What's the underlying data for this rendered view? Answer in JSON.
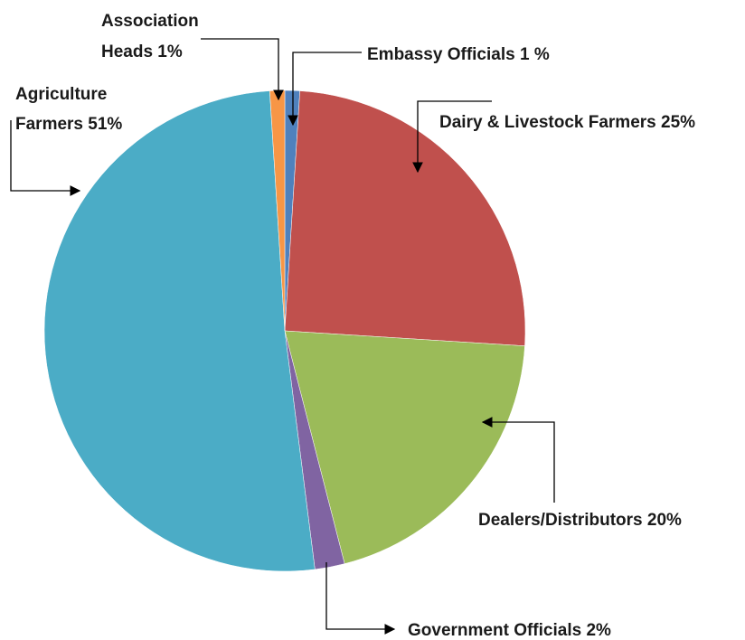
{
  "chart_data": {
    "type": "pie",
    "title": "",
    "slices": [
      {
        "key": "embassy",
        "name": "Embassy Officials",
        "value": 1,
        "color": "#4F81BD"
      },
      {
        "key": "dairy",
        "name": "Dairy & Livestock Farmers",
        "value": 25,
        "color": "#C0504D"
      },
      {
        "key": "dealers",
        "name": "Dealers/Distributors",
        "value": 20,
        "color": "#9BBB59"
      },
      {
        "key": "government",
        "name": "Government Officials",
        "value": 2,
        "color": "#8064A2"
      },
      {
        "key": "agriculture",
        "name": "Agriculture Farmers",
        "value": 51,
        "color": "#4BACC6"
      },
      {
        "key": "association",
        "name": "Association Heads",
        "value": 1,
        "color": "#F79646"
      }
    ],
    "labels": {
      "association": [
        "Association",
        "Heads 1%"
      ],
      "embassy": [
        "Embassy Officials 1 %"
      ],
      "agriculture": [
        "Agriculture",
        "Farmers 51%"
      ],
      "dairy": [
        "Dairy & Livestock Farmers 25%"
      ],
      "dealers": [
        "Dealers/Distributors 20%"
      ],
      "government": [
        "Government Officials 2%"
      ]
    }
  }
}
